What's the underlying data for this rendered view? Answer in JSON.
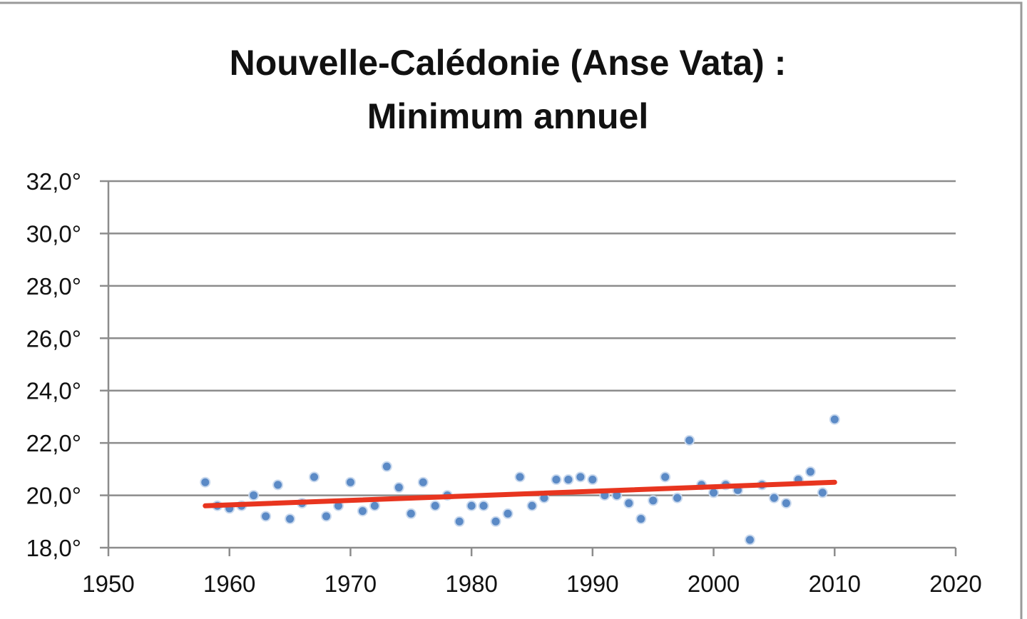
{
  "chart_data": {
    "type": "scatter",
    "title_lines": [
      "Nouvelle-Calédonie (Anse Vata) :",
      "Minimum annuel"
    ],
    "xlim": [
      1950,
      2020
    ],
    "ylim": [
      18.0,
      32.0
    ],
    "x_ticks": [
      1950,
      1960,
      1970,
      1980,
      1990,
      2000,
      2010,
      2020
    ],
    "x_tick_labels": [
      "1950",
      "1960",
      "1970",
      "1980",
      "1990",
      "2000",
      "2010",
      "2020"
    ],
    "y_ticks": [
      18,
      20,
      22,
      24,
      26,
      28,
      30,
      32
    ],
    "y_tick_labels": [
      "18,0°",
      "20,0°",
      "22,0°",
      "24,0°",
      "26,0°",
      "28,0°",
      "30,0°",
      "32,0°"
    ],
    "grid": "horizontal",
    "legend": "none",
    "series": [
      {
        "color": "#5b8ac6",
        "points": [
          {
            "x": 1958,
            "y": 20.5
          },
          {
            "x": 1959,
            "y": 19.6
          },
          {
            "x": 1960,
            "y": 19.5
          },
          {
            "x": 1961,
            "y": 19.6
          },
          {
            "x": 1962,
            "y": 20.0
          },
          {
            "x": 1963,
            "y": 19.2
          },
          {
            "x": 1964,
            "y": 20.4
          },
          {
            "x": 1965,
            "y": 19.1
          },
          {
            "x": 1966,
            "y": 19.7
          },
          {
            "x": 1967,
            "y": 20.7
          },
          {
            "x": 1968,
            "y": 19.2
          },
          {
            "x": 1969,
            "y": 19.6
          },
          {
            "x": 1970,
            "y": 20.5
          },
          {
            "x": 1971,
            "y": 19.4
          },
          {
            "x": 1972,
            "y": 19.6
          },
          {
            "x": 1973,
            "y": 21.1
          },
          {
            "x": 1974,
            "y": 20.3
          },
          {
            "x": 1975,
            "y": 19.3
          },
          {
            "x": 1976,
            "y": 20.5
          },
          {
            "x": 1977,
            "y": 19.6
          },
          {
            "x": 1978,
            "y": 20.0
          },
          {
            "x": 1979,
            "y": 19.0
          },
          {
            "x": 1980,
            "y": 19.6
          },
          {
            "x": 1981,
            "y": 19.6
          },
          {
            "x": 1982,
            "y": 19.0
          },
          {
            "x": 1983,
            "y": 19.3
          },
          {
            "x": 1984,
            "y": 20.7
          },
          {
            "x": 1985,
            "y": 19.6
          },
          {
            "x": 1986,
            "y": 19.9
          },
          {
            "x": 1987,
            "y": 20.6
          },
          {
            "x": 1988,
            "y": 20.6
          },
          {
            "x": 1989,
            "y": 20.7
          },
          {
            "x": 1990,
            "y": 20.6
          },
          {
            "x": 1991,
            "y": 20.0
          },
          {
            "x": 1992,
            "y": 20.0
          },
          {
            "x": 1993,
            "y": 19.7
          },
          {
            "x": 1994,
            "y": 19.1
          },
          {
            "x": 1995,
            "y": 19.8
          },
          {
            "x": 1996,
            "y": 20.7
          },
          {
            "x": 1997,
            "y": 19.9
          },
          {
            "x": 1998,
            "y": 22.1
          },
          {
            "x": 1999,
            "y": 20.4
          },
          {
            "x": 2000,
            "y": 20.1
          },
          {
            "x": 2001,
            "y": 20.4
          },
          {
            "x": 2002,
            "y": 20.2
          },
          {
            "x": 2003,
            "y": 18.3
          },
          {
            "x": 2004,
            "y": 20.4
          },
          {
            "x": 2005,
            "y": 19.9
          },
          {
            "x": 2006,
            "y": 19.7
          },
          {
            "x": 2007,
            "y": 20.6
          },
          {
            "x": 2008,
            "y": 20.9
          },
          {
            "x": 2009,
            "y": 20.1
          },
          {
            "x": 2010,
            "y": 22.9
          }
        ]
      }
    ],
    "trendline": {
      "color": "#e8351f",
      "x": [
        1958,
        2010
      ],
      "y": [
        19.6,
        20.5
      ]
    }
  }
}
